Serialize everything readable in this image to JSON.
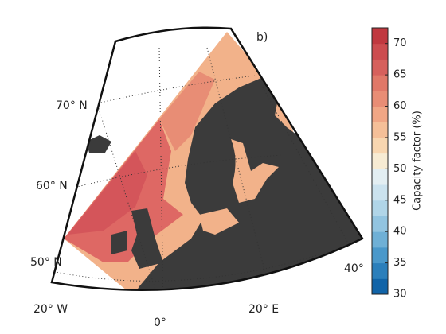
{
  "map": {
    "panel_label": "b)",
    "lat_labels": [
      "70° N",
      "60° N",
      "50° N"
    ],
    "lon_labels": [
      "20° W",
      "0°",
      "20° E",
      "40°"
    ]
  },
  "colorbar": {
    "label": "Capacity factor (%)",
    "lim": [
      30,
      72.5
    ],
    "ticks": [
      30,
      35,
      40,
      45,
      50,
      55,
      60,
      65,
      70
    ],
    "colors": [
      "#1164a8",
      "#2b7fbb",
      "#4a98ca",
      "#6fb0d6",
      "#92c4e0",
      "#b0d5e8",
      "#cbe2ee",
      "#e3eef2",
      "#f7ebd3",
      "#f8d6b0",
      "#f5bf98",
      "#f0a685",
      "#e88d75",
      "#e07868",
      "#d6605c",
      "#cc4c4f",
      "#c0383f"
    ]
  }
}
